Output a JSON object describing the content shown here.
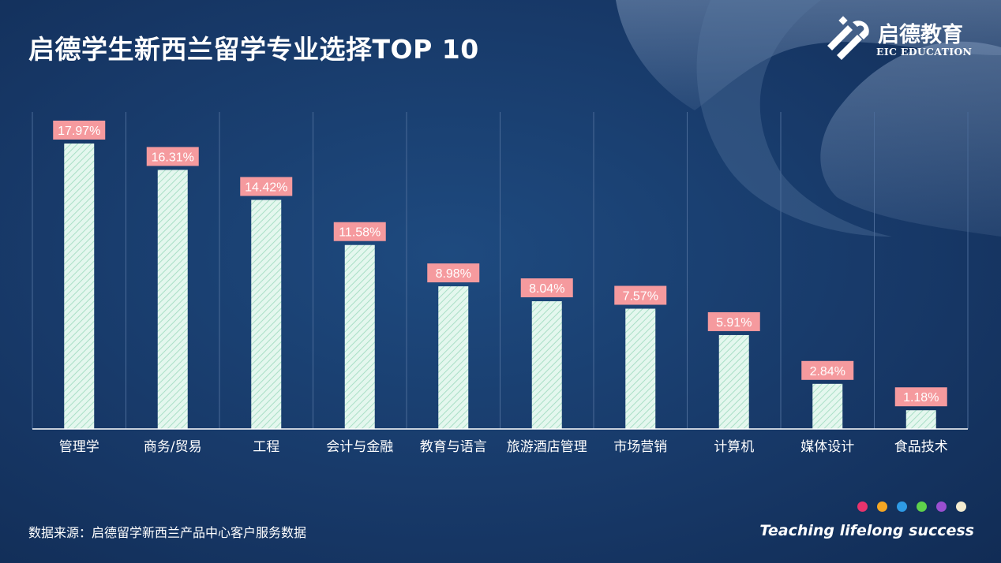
{
  "title": "启德学生新西兰留学专业选择TOP 10",
  "logo": {
    "name_cn": "启德教育",
    "name_en": "EIC EDUCATION"
  },
  "footer": {
    "source": "数据来源：启德留学新西兰产品中心客户服务数据",
    "slogan": "Teaching lifelong success",
    "dot_colors": [
      "#e8336d",
      "#f5a623",
      "#2e9be6",
      "#5fd14b",
      "#9b4fd0",
      "#f4ecd0"
    ]
  },
  "colors": {
    "background": "#1a3d6e",
    "bar_fill": "#e4f7ee",
    "bar_stripe": "#a9dfc6",
    "label_bg": "#f59a9e",
    "gridline": "#4a6a97",
    "axis": "#ffffff"
  },
  "chart_data": {
    "type": "bar",
    "title": "启德学生新西兰留学专业选择TOP 10",
    "categories": [
      "管理学",
      "商务/贸易",
      "工程",
      "会计与金融",
      "教育与语言",
      "旅游酒店管理",
      "市场营销",
      "计算机",
      "媒体设计",
      "食品技术"
    ],
    "values": [
      17.97,
      16.31,
      14.42,
      11.58,
      8.98,
      8.04,
      7.57,
      5.91,
      2.84,
      1.18
    ],
    "value_labels": [
      "17.97%",
      "16.31%",
      "14.42%",
      "11.58%",
      "8.98%",
      "8.04%",
      "7.57%",
      "5.91%",
      "2.84%",
      "1.18%"
    ],
    "unit": "%",
    "ylim": [
      0,
      20
    ],
    "grid": "vertical",
    "legend": "none"
  }
}
